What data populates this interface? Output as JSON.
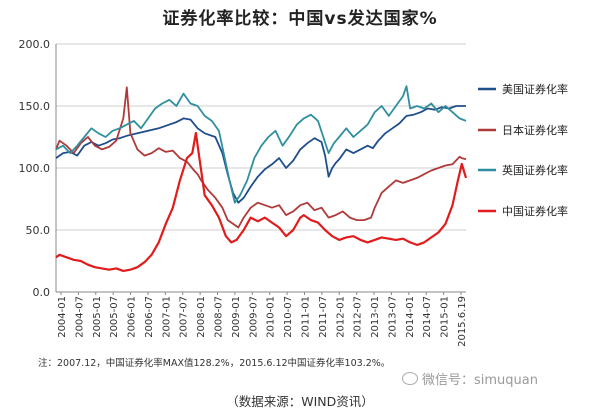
{
  "title": "证券化率比较：中国vs发达国家%",
  "footnote": "注：2007.12，中国证券化率MAX值128.2%，2015.6.12中国证券化率103.2%。",
  "source": "（数据来源：WIND资讯）",
  "watermark": "微信号：simuquan",
  "chart_data": {
    "type": "line",
    "ylim": [
      0,
      200
    ],
    "yticks": [
      "0.0",
      "50.0",
      "100.0",
      "150.0",
      "200.0"
    ],
    "xlim": [
      2004.0,
      2015.58
    ],
    "xtick_labels": [
      "2004-01",
      "2004-07",
      "2005-01",
      "2005-07",
      "2006-01",
      "2006-07",
      "2007-01",
      "2007-07",
      "2008-01",
      "2008-07",
      "2009-01",
      "2009-07",
      "2010-01",
      "2010-07",
      "2011-01",
      "2011-07",
      "2012-01",
      "2012-07",
      "2013-01",
      "2013-07",
      "2014-01",
      "2014-07",
      "2015-01",
      "2015.6.19"
    ],
    "grid": "horizontal",
    "legend_position": "right",
    "series": [
      {
        "name": "美国证券化率",
        "color": "#1f4e8c",
        "points": [
          [
            2004.0,
            108
          ],
          [
            2004.2,
            112
          ],
          [
            2004.4,
            113
          ],
          [
            2004.6,
            110
          ],
          [
            2004.8,
            118
          ],
          [
            2005.0,
            121
          ],
          [
            2005.2,
            118
          ],
          [
            2005.4,
            120
          ],
          [
            2005.6,
            123
          ],
          [
            2005.8,
            124
          ],
          [
            2006.0,
            126
          ],
          [
            2006.3,
            128
          ],
          [
            2006.6,
            130
          ],
          [
            2006.9,
            132
          ],
          [
            2007.1,
            134
          ],
          [
            2007.4,
            137
          ],
          [
            2007.6,
            140
          ],
          [
            2007.8,
            139
          ],
          [
            2008.0,
            132
          ],
          [
            2008.2,
            128
          ],
          [
            2008.5,
            125
          ],
          [
            2008.7,
            112
          ],
          [
            2008.85,
            95
          ],
          [
            2009.0,
            80
          ],
          [
            2009.15,
            72
          ],
          [
            2009.3,
            76
          ],
          [
            2009.5,
            85
          ],
          [
            2009.7,
            93
          ],
          [
            2009.9,
            99
          ],
          [
            2010.1,
            103
          ],
          [
            2010.3,
            108
          ],
          [
            2010.5,
            100
          ],
          [
            2010.7,
            106
          ],
          [
            2010.9,
            115
          ],
          [
            2011.1,
            120
          ],
          [
            2011.3,
            124
          ],
          [
            2011.5,
            121
          ],
          [
            2011.6,
            110
          ],
          [
            2011.7,
            93
          ],
          [
            2011.8,
            100
          ],
          [
            2011.9,
            104
          ],
          [
            2012.0,
            107
          ],
          [
            2012.2,
            115
          ],
          [
            2012.4,
            112
          ],
          [
            2012.6,
            115
          ],
          [
            2012.8,
            118
          ],
          [
            2012.95,
            116
          ],
          [
            2013.1,
            122
          ],
          [
            2013.3,
            128
          ],
          [
            2013.5,
            132
          ],
          [
            2013.7,
            136
          ],
          [
            2013.9,
            142
          ],
          [
            2014.1,
            143
          ],
          [
            2014.3,
            145
          ],
          [
            2014.5,
            148
          ],
          [
            2014.7,
            147
          ],
          [
            2014.9,
            149
          ],
          [
            2015.1,
            148
          ],
          [
            2015.3,
            150
          ],
          [
            2015.46,
            150
          ],
          [
            2015.58,
            150
          ]
        ]
      },
      {
        "name": "日本证券化率",
        "color": "#b03a3a",
        "points": [
          [
            2004.0,
            115
          ],
          [
            2004.1,
            122
          ],
          [
            2004.3,
            118
          ],
          [
            2004.5,
            112
          ],
          [
            2004.7,
            120
          ],
          [
            2004.9,
            125
          ],
          [
            2005.1,
            118
          ],
          [
            2005.3,
            115
          ],
          [
            2005.5,
            117
          ],
          [
            2005.7,
            122
          ],
          [
            2005.9,
            140
          ],
          [
            2006.0,
            165
          ],
          [
            2006.1,
            128
          ],
          [
            2006.3,
            115
          ],
          [
            2006.5,
            110
          ],
          [
            2006.7,
            112
          ],
          [
            2006.9,
            116
          ],
          [
            2007.1,
            113
          ],
          [
            2007.3,
            114
          ],
          [
            2007.5,
            108
          ],
          [
            2007.7,
            105
          ],
          [
            2007.9,
            98
          ],
          [
            2008.0,
            95
          ],
          [
            2008.1,
            90
          ],
          [
            2008.3,
            82
          ],
          [
            2008.5,
            76
          ],
          [
            2008.7,
            68
          ],
          [
            2008.85,
            58
          ],
          [
            2009.0,
            55
          ],
          [
            2009.15,
            52
          ],
          [
            2009.3,
            60
          ],
          [
            2009.5,
            68
          ],
          [
            2009.7,
            72
          ],
          [
            2009.9,
            70
          ],
          [
            2010.1,
            68
          ],
          [
            2010.3,
            70
          ],
          [
            2010.5,
            62
          ],
          [
            2010.7,
            65
          ],
          [
            2010.9,
            70
          ],
          [
            2011.1,
            72
          ],
          [
            2011.3,
            66
          ],
          [
            2011.5,
            68
          ],
          [
            2011.7,
            60
          ],
          [
            2011.9,
            62
          ],
          [
            2012.1,
            65
          ],
          [
            2012.3,
            60
          ],
          [
            2012.5,
            58
          ],
          [
            2012.7,
            58
          ],
          [
            2012.9,
            60
          ],
          [
            2013.0,
            68
          ],
          [
            2013.2,
            80
          ],
          [
            2013.4,
            85
          ],
          [
            2013.6,
            90
          ],
          [
            2013.8,
            88
          ],
          [
            2014.0,
            90
          ],
          [
            2014.2,
            92
          ],
          [
            2014.4,
            95
          ],
          [
            2014.6,
            98
          ],
          [
            2014.8,
            100
          ],
          [
            2015.0,
            102
          ],
          [
            2015.2,
            103
          ],
          [
            2015.4,
            109
          ],
          [
            2015.46,
            108
          ],
          [
            2015.58,
            107
          ]
        ]
      },
      {
        "name": "英国证券化率",
        "color": "#2f8f9f",
        "points": [
          [
            2004.0,
            115
          ],
          [
            2004.2,
            118
          ],
          [
            2004.4,
            112
          ],
          [
            2004.6,
            118
          ],
          [
            2004.8,
            125
          ],
          [
            2005.0,
            132
          ],
          [
            2005.2,
            128
          ],
          [
            2005.4,
            125
          ],
          [
            2005.6,
            130
          ],
          [
            2005.8,
            132
          ],
          [
            2006.0,
            135
          ],
          [
            2006.2,
            138
          ],
          [
            2006.4,
            132
          ],
          [
            2006.6,
            140
          ],
          [
            2006.8,
            148
          ],
          [
            2007.0,
            152
          ],
          [
            2007.2,
            155
          ],
          [
            2007.4,
            150
          ],
          [
            2007.6,
            160
          ],
          [
            2007.8,
            152
          ],
          [
            2008.0,
            150
          ],
          [
            2008.2,
            142
          ],
          [
            2008.4,
            138
          ],
          [
            2008.6,
            130
          ],
          [
            2008.75,
            110
          ],
          [
            2008.9,
            90
          ],
          [
            2009.05,
            72
          ],
          [
            2009.2,
            78
          ],
          [
            2009.4,
            90
          ],
          [
            2009.6,
            108
          ],
          [
            2009.8,
            118
          ],
          [
            2010.0,
            125
          ],
          [
            2010.2,
            130
          ],
          [
            2010.4,
            118
          ],
          [
            2010.6,
            126
          ],
          [
            2010.8,
            135
          ],
          [
            2011.0,
            140
          ],
          [
            2011.2,
            143
          ],
          [
            2011.4,
            138
          ],
          [
            2011.55,
            125
          ],
          [
            2011.7,
            112
          ],
          [
            2011.85,
            120
          ],
          [
            2012.0,
            125
          ],
          [
            2012.2,
            132
          ],
          [
            2012.4,
            125
          ],
          [
            2012.6,
            130
          ],
          [
            2012.8,
            135
          ],
          [
            2013.0,
            145
          ],
          [
            2013.2,
            150
          ],
          [
            2013.4,
            142
          ],
          [
            2013.6,
            150
          ],
          [
            2013.8,
            158
          ],
          [
            2013.9,
            166
          ],
          [
            2014.0,
            148
          ],
          [
            2014.2,
            150
          ],
          [
            2014.4,
            148
          ],
          [
            2014.6,
            152
          ],
          [
            2014.8,
            145
          ],
          [
            2015.0,
            150
          ],
          [
            2015.2,
            145
          ],
          [
            2015.4,
            140
          ],
          [
            2015.58,
            138
          ]
        ]
      },
      {
        "name": "中国证券化率",
        "color": "#e01c1c",
        "points": [
          [
            2004.0,
            28
          ],
          [
            2004.1,
            30
          ],
          [
            2004.3,
            28
          ],
          [
            2004.5,
            26
          ],
          [
            2004.7,
            25
          ],
          [
            2004.9,
            22
          ],
          [
            2005.1,
            20
          ],
          [
            2005.3,
            19
          ],
          [
            2005.5,
            18
          ],
          [
            2005.7,
            19
          ],
          [
            2005.9,
            17
          ],
          [
            2006.1,
            18
          ],
          [
            2006.3,
            20
          ],
          [
            2006.5,
            24
          ],
          [
            2006.7,
            30
          ],
          [
            2006.9,
            40
          ],
          [
            2007.1,
            55
          ],
          [
            2007.3,
            68
          ],
          [
            2007.5,
            90
          ],
          [
            2007.7,
            108
          ],
          [
            2007.85,
            112
          ],
          [
            2007.95,
            128.2
          ],
          [
            2008.05,
            108
          ],
          [
            2008.2,
            78
          ],
          [
            2008.4,
            70
          ],
          [
            2008.6,
            60
          ],
          [
            2008.8,
            45
          ],
          [
            2008.95,
            40
          ],
          [
            2009.1,
            42
          ],
          [
            2009.3,
            50
          ],
          [
            2009.5,
            60
          ],
          [
            2009.7,
            57
          ],
          [
            2009.9,
            60
          ],
          [
            2010.1,
            56
          ],
          [
            2010.3,
            52
          ],
          [
            2010.5,
            45
          ],
          [
            2010.7,
            50
          ],
          [
            2010.9,
            60
          ],
          [
            2011.0,
            62
          ],
          [
            2011.2,
            58
          ],
          [
            2011.4,
            56
          ],
          [
            2011.6,
            50
          ],
          [
            2011.8,
            45
          ],
          [
            2012.0,
            42
          ],
          [
            2012.2,
            44
          ],
          [
            2012.4,
            45
          ],
          [
            2012.6,
            42
          ],
          [
            2012.8,
            40
          ],
          [
            2013.0,
            42
          ],
          [
            2013.2,
            44
          ],
          [
            2013.4,
            43
          ],
          [
            2013.6,
            42
          ],
          [
            2013.8,
            43
          ],
          [
            2014.0,
            40
          ],
          [
            2014.2,
            38
          ],
          [
            2014.4,
            40
          ],
          [
            2014.6,
            44
          ],
          [
            2014.8,
            48
          ],
          [
            2015.0,
            55
          ],
          [
            2015.2,
            70
          ],
          [
            2015.35,
            90
          ],
          [
            2015.46,
            103.2
          ],
          [
            2015.58,
            92
          ]
        ]
      }
    ]
  }
}
